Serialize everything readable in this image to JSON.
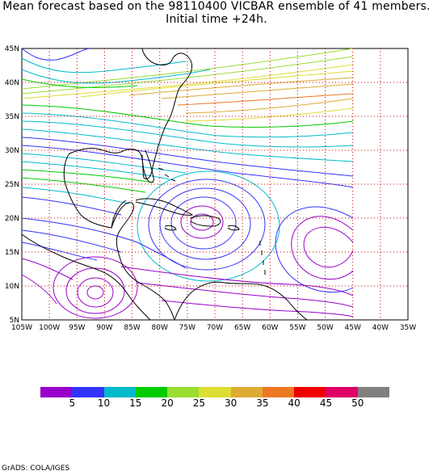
{
  "title": {
    "line1": "Mean forecast based on the 98110400 VICBAR ensemble of 41 members.",
    "line2": "Initial time +24h."
  },
  "map": {
    "lat_labels": [
      "45N",
      "40N",
      "35N",
      "30N",
      "25N",
      "20N",
      "15N",
      "10N",
      "5N"
    ],
    "lon_labels": [
      "105W",
      "100W",
      "95W",
      "90W",
      "85W",
      "80W",
      "75W",
      "70W",
      "65W",
      "60W",
      "55W",
      "50W",
      "45W",
      "40W",
      "35W"
    ],
    "gridline_color": "#cc0000",
    "coastline_color": "#000000"
  },
  "colorbar": {
    "colors": [
      "#9900cc",
      "#3333ff",
      "#00bbcc",
      "#00cc00",
      "#99dd33",
      "#dddd33",
      "#ddaa33",
      "#ee7722",
      "#ee0000",
      "#dd0066",
      "#808080"
    ],
    "labels": [
      "5",
      "10",
      "15",
      "20",
      "25",
      "30",
      "35",
      "40",
      "45",
      "50"
    ]
  },
  "credit": "GrADS: COLA/IGES"
}
